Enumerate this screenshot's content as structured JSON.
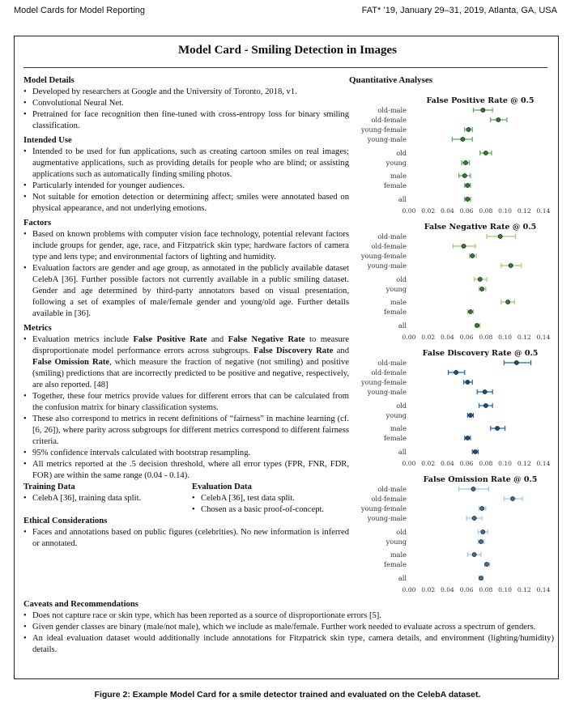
{
  "header": {
    "left": "Model Cards for Model Reporting",
    "right": "FAT* ’19, January 29–31, 2019, Atlanta, GA, USA"
  },
  "card": {
    "title": "Model Card - Smiling Detection in Images",
    "model_details": {
      "heading": "Model Details",
      "items": [
        "Developed by researchers at Google and the University of Toronto, 2018, v1.",
        "Convolutional Neural Net.",
        "Pretrained for face recognition then fine-tuned with cross-entropy loss for binary smiling classification."
      ]
    },
    "intended_use": {
      "heading": "Intended Use",
      "items": [
        "Intended to be used for fun applications, such as creating cartoon smiles on real images; augmentative applications, such as providing details for people who are blind; or assisting applications such as automatically finding smiling photos.",
        "Particularly intended for younger audiences.",
        "Not suitable for emotion detection or determining affect; smiles were annotated based on physical appearance, and not underlying emotions."
      ]
    },
    "factors": {
      "heading": "Factors",
      "items": [
        "Based on known problems with computer vision face technology, potential relevant factors include groups for gender, age, race, and Fitzpatrick skin type; hardware factors of camera type and lens type; and environmental factors of lighting and humidity.",
        "Evaluation factors are gender and age group, as annotated in the publicly available dataset CelebA [36]. Further possible factors not currently available in a public smiling dataset. Gender and age determined by third-party annotators based on visual presentation, following a set of examples of male/female gender and young/old age. Further details available in [36]."
      ]
    },
    "metrics": {
      "heading": "Metrics",
      "item1_a": "Evaluation metrics include ",
      "item1_b": "False Positive Rate",
      "item1_c": " and ",
      "item1_d": "False Negative Rate",
      "item1_e": " to measure disproportionate model performance errors across subgroups. ",
      "item1_f": "False Discovery Rate",
      "item1_g": " and ",
      "item1_h": "False Omission Rate",
      "item1_i": ", which measure the fraction of negative (not smiling) and positive (smiling) predictions that are incorrectly predicted to be positive and negative, respectively, are also reported. [48]",
      "items": [
        "Together, these four metrics provide values for different errors that can be calculated from the confusion matrix for binary classification systems.",
        "These also correspond to metrics in recent definitions of “fairness” in machine learning (cf. [6, 26]), where parity across subgroups for different metrics correspond to different fairness criteria.",
        "95% confidence intervals calculated with bootstrap resampling.",
        "All metrics reported at the .5 decision threshold, where all error types (FPR, FNR, FDR, FOR) are within the same range (0.04 - 0.14)."
      ]
    },
    "training_data": {
      "heading": "Training Data",
      "items": [
        "CelebA [36], training data split."
      ]
    },
    "evaluation_data": {
      "heading": "Evaluation Data",
      "items": [
        "CelebA [36], test data split.",
        "Chosen as a basic proof-of-concept."
      ]
    },
    "ethical": {
      "heading": "Ethical Considerations",
      "items": [
        "Faces and annotations based on public figures (celebrities). No new information is inferred or annotated."
      ]
    },
    "caveats": {
      "heading": "Caveats and Recommendations",
      "items": [
        "Does not capture race or skin type, which has been reported as a source of disproportionate errors [5].",
        "Given gender classes are binary (male/not male), which we include as male/female. Further work needed to evaluate across a spectrum of genders.",
        "An ideal evaluation dataset would additionally include annotations for Fitzpatrick skin type, camera details, and environment (lighting/humidity) details."
      ]
    },
    "quant_title": "Quantitative Analyses"
  },
  "caption": "Figure 2: Example Model Card for a smile detector trained and evaluated on the CelebA dataset.",
  "chart_data": [
    {
      "type": "scatter",
      "title": "False Positive Rate @ 0.5",
      "categories": [
        "old-male",
        "old-female",
        "young-female",
        "young-male",
        "old",
        "young",
        "male",
        "female",
        "all"
      ],
      "values": [
        0.077,
        0.093,
        0.062,
        0.056,
        0.08,
        0.059,
        0.058,
        0.061,
        0.061
      ],
      "ci_low": [
        0.067,
        0.085,
        0.058,
        0.045,
        0.074,
        0.055,
        0.052,
        0.058,
        0.058
      ],
      "ci_high": [
        0.087,
        0.102,
        0.066,
        0.066,
        0.086,
        0.063,
        0.064,
        0.064,
        0.064
      ],
      "xlim": [
        0.0,
        0.14
      ],
      "xticks": [
        "0.00",
        "0.02",
        "0.04",
        "0.06",
        "0.08",
        "0.10",
        "0.12",
        "0.14"
      ],
      "color": "#2e7d32",
      "ci_color": "#4caf50"
    },
    {
      "type": "scatter",
      "title": "False Negative Rate @ 0.5",
      "categories": [
        "old-male",
        "old-female",
        "young-female",
        "young-male",
        "old",
        "young",
        "male",
        "female",
        "all"
      ],
      "values": [
        0.095,
        0.057,
        0.066,
        0.106,
        0.074,
        0.076,
        0.103,
        0.064,
        0.071
      ],
      "ci_low": [
        0.081,
        0.046,
        0.063,
        0.096,
        0.068,
        0.073,
        0.096,
        0.061,
        0.069
      ],
      "ci_high": [
        0.111,
        0.069,
        0.07,
        0.117,
        0.081,
        0.08,
        0.11,
        0.067,
        0.074
      ],
      "xlim": [
        0.0,
        0.14
      ],
      "xticks": [
        "0.00",
        "0.02",
        "0.04",
        "0.06",
        "0.08",
        "0.10",
        "0.12",
        "0.14"
      ],
      "color": "#2e7d32",
      "ci_color": "#9ccc65"
    },
    {
      "type": "scatter",
      "title": "False Discovery Rate @ 0.5",
      "categories": [
        "old-male",
        "old-female",
        "young-female",
        "young-male",
        "old",
        "young",
        "male",
        "female",
        "all"
      ],
      "values": [
        0.112,
        0.049,
        0.061,
        0.079,
        0.08,
        0.064,
        0.092,
        0.061,
        0.069
      ],
      "ci_low": [
        0.099,
        0.041,
        0.057,
        0.071,
        0.073,
        0.061,
        0.085,
        0.058,
        0.066
      ],
      "ci_high": [
        0.127,
        0.058,
        0.066,
        0.087,
        0.087,
        0.067,
        0.1,
        0.064,
        0.072
      ],
      "xlim": [
        0.0,
        0.14
      ],
      "xticks": [
        "0.00",
        "0.02",
        "0.04",
        "0.06",
        "0.08",
        "0.10",
        "0.12",
        "0.14"
      ],
      "color": "#1f4e79",
      "ci_color": "#1565c0"
    },
    {
      "type": "scatter",
      "title": "False Omission Rate @ 0.5",
      "categories": [
        "old-male",
        "old-female",
        "young-female",
        "young-male",
        "old",
        "young",
        "male",
        "female",
        "all"
      ],
      "values": [
        0.067,
        0.108,
        0.076,
        0.068,
        0.077,
        0.075,
        0.068,
        0.081,
        0.075
      ],
      "ci_low": [
        0.052,
        0.099,
        0.073,
        0.06,
        0.072,
        0.072,
        0.061,
        0.079,
        0.073
      ],
      "ci_high": [
        0.083,
        0.118,
        0.08,
        0.076,
        0.082,
        0.078,
        0.075,
        0.084,
        0.077
      ],
      "xlim": [
        0.0,
        0.14
      ],
      "xticks": [
        "0.00",
        "0.02",
        "0.04",
        "0.06",
        "0.08",
        "0.10",
        "0.12",
        "0.14"
      ],
      "color": "#4a6b85",
      "ci_color": "#90caf9"
    }
  ]
}
